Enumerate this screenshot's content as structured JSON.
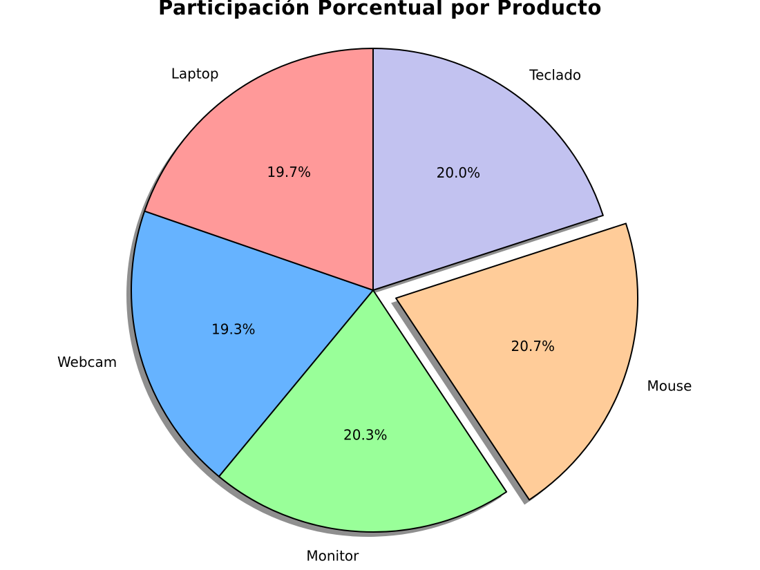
{
  "page": {
    "background_color": "#ffffff"
  },
  "chart_data": {
    "type": "pie",
    "title": "Participación Porcentual por Producto",
    "slices": [
      {
        "label": "Teclado",
        "value": 20.0,
        "pct_label": "20.0%",
        "color": "#c2c2f0",
        "explode": 0
      },
      {
        "label": "Mouse",
        "value": 20.7,
        "pct_label": "20.7%",
        "color": "#ffcc99",
        "explode": 0.1
      },
      {
        "label": "Monitor",
        "value": 20.3,
        "pct_label": "20.3%",
        "color": "#99ff99",
        "explode": 0
      },
      {
        "label": "Webcam",
        "value": 19.3,
        "pct_label": "19.3%",
        "color": "#66b3ff",
        "explode": 0
      },
      {
        "label": "Laptop",
        "value": 19.7,
        "pct_label": "19.7%",
        "color": "#ff9999",
        "explode": 0
      }
    ],
    "start_angle": 90,
    "direction": "clockwise",
    "shadow": true,
    "shadow_color": "#8f8f8f",
    "edge_color": "#000000",
    "text_color": "#000000",
    "label_distance": 1.1,
    "pct_distance": 0.6,
    "legend": "none",
    "grid": false
  }
}
